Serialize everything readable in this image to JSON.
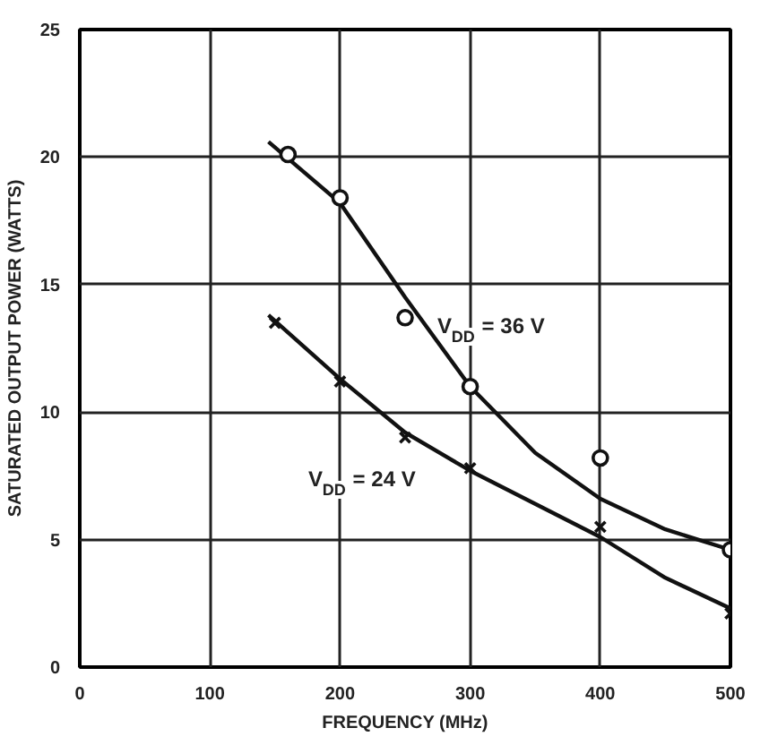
{
  "chart_data": {
    "type": "line",
    "xlabel": "FREQUENCY (MHz)",
    "ylabel": "SATURATED OUTPUT POWER (WATTS)",
    "xlim": [
      0,
      500
    ],
    "ylim": [
      0,
      25
    ],
    "xticks": [
      0,
      100,
      200,
      300,
      400,
      500
    ],
    "yticks": [
      0,
      5,
      10,
      15,
      20,
      25
    ],
    "grid": true,
    "series": [
      {
        "color": "#111111",
        "marker": "none",
        "line_style": "solid",
        "x": [
          145,
          200,
          250,
          300,
          350,
          400,
          450,
          500
        ],
        "values": [
          20.6,
          18.2,
          14.5,
          11,
          8.4,
          6.6,
          5.4,
          4.6
        ]
      },
      {
        "color": "#111111",
        "marker": "none",
        "line_style": "solid",
        "x": [
          145,
          200,
          250,
          300,
          350,
          400,
          450,
          500
        ],
        "values": [
          13.8,
          11.3,
          9.2,
          7.7,
          6.4,
          5.1,
          3.5,
          2.3
        ]
      },
      {
        "type": "scatter",
        "color": "#111111",
        "marker": "circle",
        "x": [
          160,
          200,
          250,
          300,
          400,
          500
        ],
        "values": [
          20.1,
          18.4,
          13.7,
          11,
          8.2,
          4.6
        ]
      },
      {
        "type": "scatter",
        "color": "#111111",
        "marker": "cross",
        "x": [
          150,
          200,
          250,
          300,
          400,
          500
        ],
        "values": [
          13.5,
          11.2,
          9,
          7.8,
          5.5,
          2.1
        ]
      }
    ],
    "annotations": [
      "V$_{DD}$ = 36 V",
      "V$_{DD}$ = 24 V"
    ]
  }
}
